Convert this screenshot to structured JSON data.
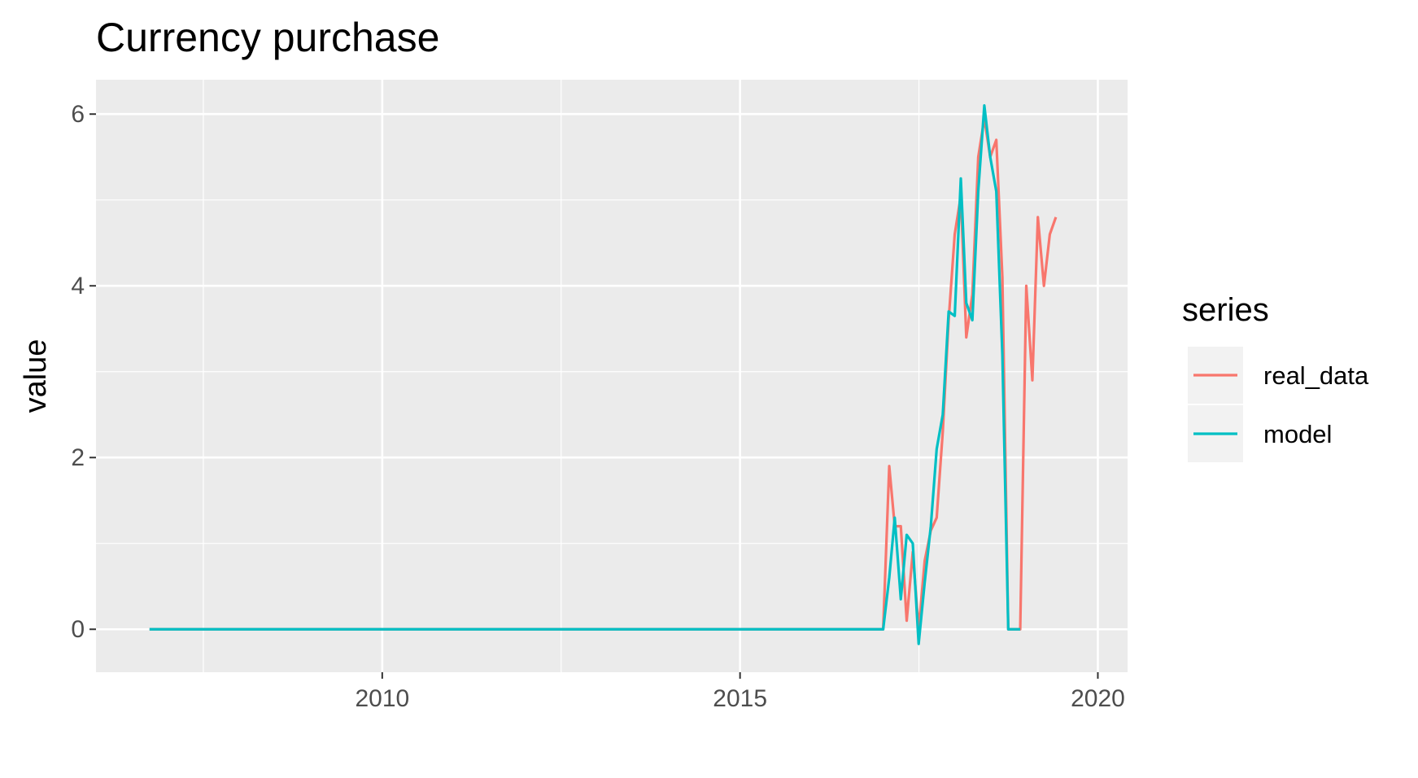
{
  "chart_data": {
    "type": "line",
    "title": "Currency purchase",
    "xlabel": "",
    "ylabel": "value",
    "xlim": [
      "2006-01-01",
      "2020-06-01"
    ],
    "ylim": [
      -0.5,
      6.4
    ],
    "x_ticks": [
      {
        "value": "2010-01-01",
        "label": "2010"
      },
      {
        "value": "2015-01-01",
        "label": "2015"
      },
      {
        "value": "2020-01-01",
        "label": "2020"
      }
    ],
    "y_ticks": [
      {
        "value": 0,
        "label": "0"
      },
      {
        "value": 2,
        "label": "2"
      },
      {
        "value": 4,
        "label": "4"
      },
      {
        "value": 6,
        "label": "6"
      }
    ],
    "grid": true,
    "legend": {
      "title": "series",
      "position": "right"
    },
    "series": [
      {
        "name": "real_data",
        "color": "#F8766D",
        "points": [
          [
            "2006-10-01",
            0
          ],
          [
            "2016-12-01",
            0
          ],
          [
            "2017-01-01",
            0
          ],
          [
            "2017-02-01",
            1.9
          ],
          [
            "2017-03-01",
            1.2
          ],
          [
            "2017-04-01",
            1.2
          ],
          [
            "2017-05-01",
            0.1
          ],
          [
            "2017-06-01",
            0.9
          ],
          [
            "2017-07-01",
            0.0
          ],
          [
            "2017-08-01",
            0.8
          ],
          [
            "2017-09-01",
            1.15
          ],
          [
            "2017-10-01",
            1.3
          ],
          [
            "2017-11-01",
            2.3
          ],
          [
            "2017-12-01",
            3.6
          ],
          [
            "2018-01-01",
            4.6
          ],
          [
            "2018-02-01",
            5.05
          ],
          [
            "2018-03-01",
            3.4
          ],
          [
            "2018-04-01",
            3.9
          ],
          [
            "2018-05-01",
            5.5
          ],
          [
            "2018-06-01",
            5.95
          ],
          [
            "2018-07-01",
            5.5
          ],
          [
            "2018-08-01",
            5.7
          ],
          [
            "2018-09-01",
            4.1
          ],
          [
            "2018-10-01",
            0
          ],
          [
            "2018-11-01",
            0
          ],
          [
            "2018-12-01",
            0
          ],
          [
            "2019-01-01",
            4.0
          ],
          [
            "2019-02-01",
            2.9
          ],
          [
            "2019-03-01",
            4.8
          ],
          [
            "2019-04-01",
            4.0
          ],
          [
            "2019-05-01",
            4.6
          ],
          [
            "2019-06-01",
            4.8
          ]
        ]
      },
      {
        "name": "model",
        "color": "#00BFC4",
        "points": [
          [
            "2006-10-01",
            0
          ],
          [
            "2016-12-01",
            0
          ],
          [
            "2017-01-01",
            0
          ],
          [
            "2017-02-01",
            0.6
          ],
          [
            "2017-03-01",
            1.3
          ],
          [
            "2017-04-01",
            0.35
          ],
          [
            "2017-05-01",
            1.1
          ],
          [
            "2017-06-01",
            1.0
          ],
          [
            "2017-07-01",
            -0.17
          ],
          [
            "2017-08-01",
            0.55
          ],
          [
            "2017-09-01",
            1.2
          ],
          [
            "2017-10-01",
            2.1
          ],
          [
            "2017-11-01",
            2.5
          ],
          [
            "2017-12-01",
            3.7
          ],
          [
            "2018-01-01",
            3.65
          ],
          [
            "2018-02-01",
            5.25
          ],
          [
            "2018-03-01",
            3.8
          ],
          [
            "2018-04-01",
            3.6
          ],
          [
            "2018-05-01",
            5.1
          ],
          [
            "2018-06-01",
            6.1
          ],
          [
            "2018-07-01",
            5.5
          ],
          [
            "2018-08-01",
            5.1
          ],
          [
            "2018-09-01",
            3.2
          ],
          [
            "2018-10-01",
            0
          ],
          [
            "2018-11-01",
            0
          ],
          [
            "2018-12-01",
            0
          ]
        ]
      }
    ]
  }
}
